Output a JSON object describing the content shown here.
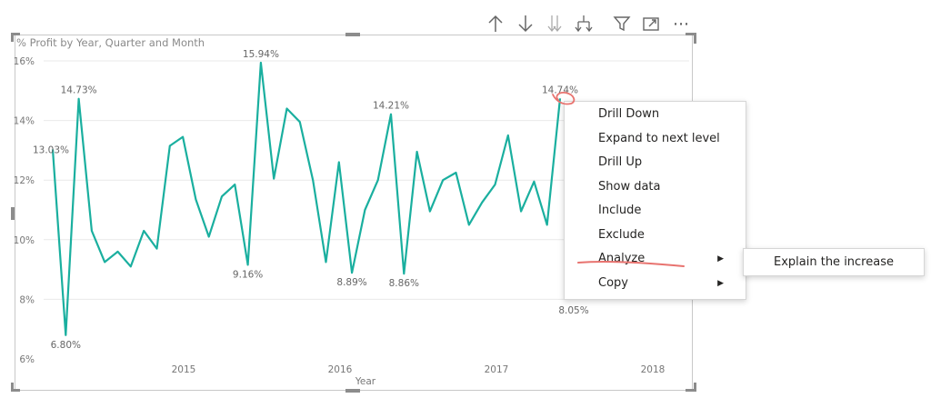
{
  "toolbar": {
    "icons": [
      "arrow-up-icon",
      "arrow-down-icon",
      "double-arrow-down-icon",
      "expand-hierarchy-icon",
      "filter-icon",
      "focus-mode-icon",
      "more-options-icon"
    ],
    "more_label": "⋯"
  },
  "chart_data": {
    "type": "line",
    "title": "% Profit by Year, Quarter and Month",
    "xlabel": "Year",
    "ylabel": "",
    "x_ticks": [
      "2015",
      "2016",
      "2017",
      "2018"
    ],
    "y_ticks": [
      "6%",
      "8%",
      "10%",
      "12%",
      "14%",
      "16%"
    ],
    "ylim": [
      6,
      16
    ],
    "grid": true,
    "color": "#1aaf9f",
    "series": [
      {
        "values": [
          13.03,
          6.8,
          14.73,
          10.3,
          9.25,
          9.6,
          9.1,
          10.3,
          9.7,
          13.15,
          13.45,
          11.35,
          10.1,
          11.45,
          11.85,
          9.16,
          15.94,
          12.05,
          14.4,
          13.95,
          12.0,
          9.25,
          12.6,
          8.89,
          11.0,
          12.0,
          14.21,
          8.86,
          12.95,
          10.95,
          12.0,
          12.25,
          10.5,
          11.25,
          11.85,
          13.5,
          10.95,
          11.95,
          10.5,
          14.74
        ]
      }
    ],
    "data_labels": [
      {
        "index": 0,
        "text": "13.03%"
      },
      {
        "index": 1,
        "text": "6.80%"
      },
      {
        "index": 2,
        "text": "14.73%"
      },
      {
        "index": 15,
        "text": "9.16%"
      },
      {
        "index": 16,
        "text": "15.94%"
      },
      {
        "index": 23,
        "text": "8.89%"
      },
      {
        "index": 26,
        "text": "14.21%"
      },
      {
        "index": 27,
        "text": "8.86%"
      },
      {
        "index": 39,
        "text": "14.74%"
      }
    ],
    "extra_labels": [
      "8.05%"
    ]
  },
  "context_menu": {
    "items": [
      {
        "label": "Drill Down",
        "has_submenu": false
      },
      {
        "label": "Expand to next level",
        "has_submenu": false
      },
      {
        "label": "Drill Up",
        "has_submenu": false
      },
      {
        "label": "Show data",
        "has_submenu": false
      },
      {
        "label": "Include",
        "has_submenu": false
      },
      {
        "label": "Exclude",
        "has_submenu": false
      },
      {
        "label": "Analyze",
        "has_submenu": true
      },
      {
        "label": "Copy",
        "has_submenu": true
      }
    ],
    "arrow_glyph": "▶"
  },
  "submenu": {
    "items": [
      {
        "label": "Explain the increase"
      }
    ]
  },
  "annotation_color": "#e8736f"
}
